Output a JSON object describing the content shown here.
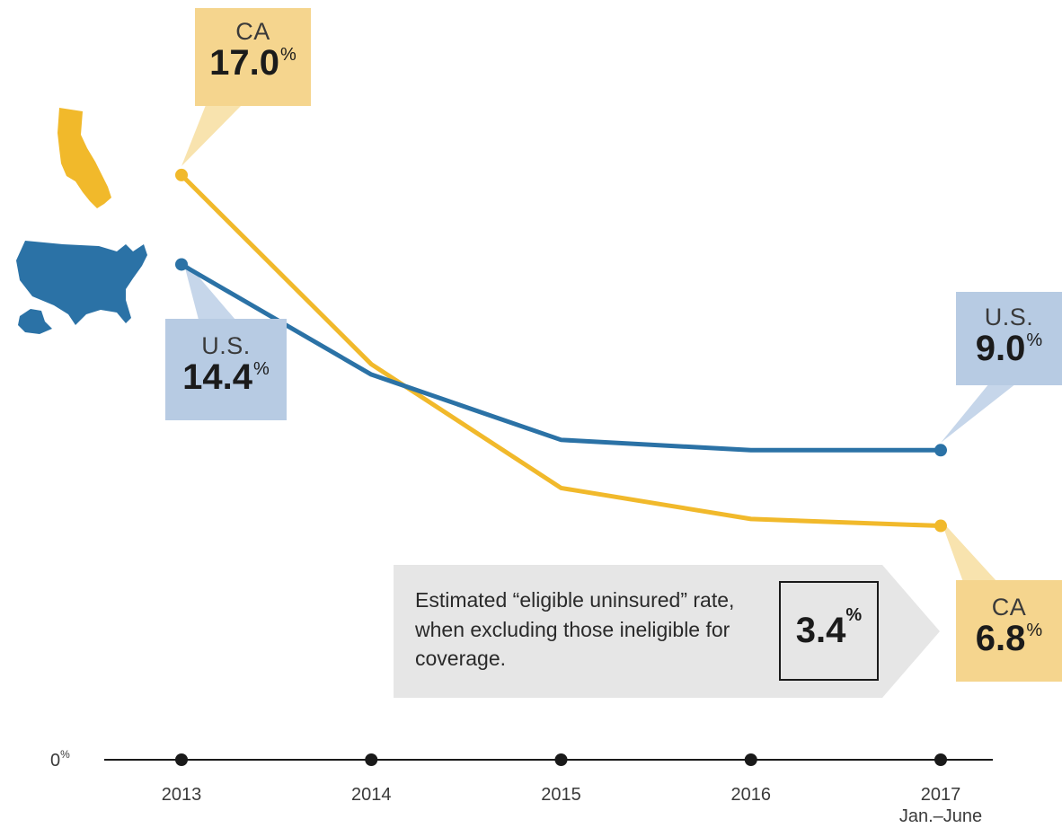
{
  "colors": {
    "ca": "#f1b92b",
    "us": "#2b72a6",
    "ca_box": "#f5d58e",
    "us_box": "#b7cbe3",
    "note_bg": "#e6e6e6",
    "axis": "#1a1a1a"
  },
  "icons": {
    "ca": "california-map-icon",
    "us": "usa-map-icon"
  },
  "chart_data": {
    "type": "line",
    "categories": [
      "2013",
      "2014",
      "2015",
      "2016",
      "2017"
    ],
    "category_sublabels": [
      "",
      "",
      "",
      "",
      "Jan.–June"
    ],
    "series": [
      {
        "name": "CA",
        "values": [
          17.0,
          11.5,
          7.9,
          7.0,
          6.8
        ]
      },
      {
        "name": "U.S.",
        "values": [
          14.4,
          11.2,
          9.3,
          9.0,
          9.0
        ]
      }
    ],
    "y_axis_label": "0%",
    "ylim": [
      0,
      21
    ],
    "grid": false,
    "legend": "none"
  },
  "callouts": {
    "ca_start": {
      "name": "CA",
      "value": "17.0",
      "unit": "%"
    },
    "us_start": {
      "name": "U.S.",
      "value": "14.4",
      "unit": "%"
    },
    "us_end": {
      "name": "U.S.",
      "value": "9.0",
      "unit": "%"
    },
    "ca_end": {
      "name": "CA",
      "value": "6.8",
      "unit": "%"
    }
  },
  "note": {
    "text": "Estimated “eligible uninsured” rate, when excluding those ineligible for coverage.",
    "value": "3.4",
    "unit": "%"
  },
  "axis": {
    "zero_value": "0",
    "zero_unit": "%"
  }
}
